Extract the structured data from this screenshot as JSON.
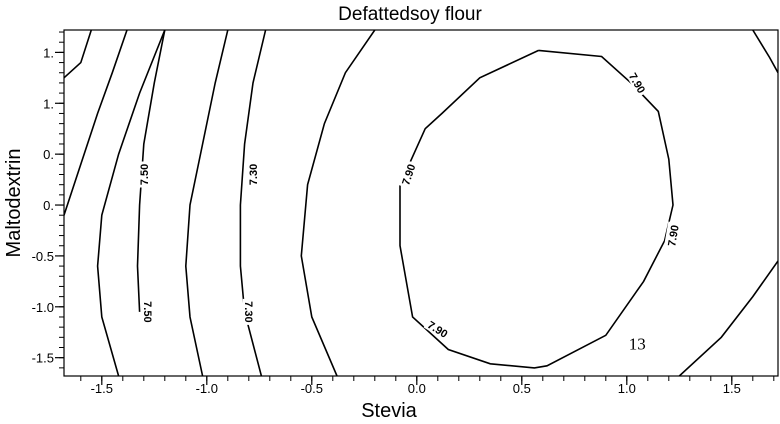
{
  "chart_data": {
    "type": "contour",
    "title": "Defattedsoy flour",
    "xlabel": "Stevia",
    "ylabel": "Maltodextrin",
    "xlim": [
      -1.68,
      1.72
    ],
    "ylim": [
      -1.68,
      1.72
    ],
    "x_ticks": [
      {
        "value": -1.5,
        "label": "-1.5"
      },
      {
        "value": -1.0,
        "label": "-1.0"
      },
      {
        "value": -0.5,
        "label": "-0.5"
      },
      {
        "value": 0.0,
        "label": "0.0"
      },
      {
        "value": 0.5,
        "label": "0.5"
      },
      {
        "value": 1.0,
        "label": "1.0"
      },
      {
        "value": 1.5,
        "label": "1.5"
      }
    ],
    "y_ticks": [
      {
        "value": 1.5,
        "label": "1."
      },
      {
        "value": 1.0,
        "label": "1."
      },
      {
        "value": 0.5,
        "label": "0."
      },
      {
        "value": 0.0,
        "label": "0."
      },
      {
        "value": -0.5,
        "label": "-0.5"
      },
      {
        "value": -1.0,
        "label": "-1.0"
      },
      {
        "value": -1.5,
        "label": "-1.5"
      }
    ],
    "contours": [
      {
        "level": "",
        "points": [
          [
            -1.68,
            1.25
          ],
          [
            -1.6,
            1.4
          ],
          [
            -1.55,
            1.72
          ]
        ]
      },
      {
        "level": "",
        "points": [
          [
            -1.68,
            -0.1
          ],
          [
            -1.6,
            0.4
          ],
          [
            -1.52,
            0.9
          ],
          [
            -1.45,
            1.3
          ],
          [
            -1.38,
            1.72
          ]
        ]
      },
      {
        "level": "",
        "points": [
          [
            -1.42,
            -1.68
          ],
          [
            -1.5,
            -1.1
          ],
          [
            -1.52,
            -0.6
          ],
          [
            -1.5,
            -0.1
          ],
          [
            -1.42,
            0.5
          ],
          [
            -1.32,
            1.1
          ],
          [
            -1.2,
            1.72
          ]
        ]
      },
      {
        "level": "7.50",
        "points": [
          [
            -1.2,
            1.72
          ],
          [
            -1.25,
            1.2
          ],
          [
            -1.3,
            0.6
          ],
          [
            -1.32,
            0.0
          ],
          [
            -1.33,
            -0.6
          ],
          [
            -1.32,
            -1.05
          ]
        ]
      },
      {
        "level": "",
        "points": [
          [
            -1.02,
            -1.68
          ],
          [
            -1.08,
            -1.1
          ],
          [
            -1.1,
            -0.6
          ],
          [
            -1.08,
            0.0
          ],
          [
            -1.02,
            0.6
          ],
          [
            -0.96,
            1.2
          ],
          [
            -0.9,
            1.72
          ]
        ]
      },
      {
        "level": "7.30",
        "points": [
          [
            -0.72,
            1.72
          ],
          [
            -0.78,
            1.2
          ],
          [
            -0.82,
            0.6
          ],
          [
            -0.84,
            0.0
          ],
          [
            -0.84,
            -0.6
          ],
          [
            -0.82,
            -1.05
          ],
          [
            -0.74,
            -1.68
          ]
        ]
      },
      {
        "level": "",
        "points": [
          [
            -0.38,
            -1.68
          ],
          [
            -0.5,
            -1.1
          ],
          [
            -0.55,
            -0.5
          ],
          [
            -0.52,
            0.2
          ],
          [
            -0.44,
            0.8
          ],
          [
            -0.34,
            1.3
          ],
          [
            -0.2,
            1.72
          ]
        ]
      },
      {
        "level": "7.90",
        "points": [
          [
            0.58,
            1.52
          ],
          [
            0.88,
            1.46
          ],
          [
            1.02,
            1.2
          ],
          [
            1.15,
            0.92
          ],
          [
            1.2,
            0.45
          ],
          [
            1.22,
            0.0
          ],
          [
            1.18,
            -0.35
          ],
          [
            1.08,
            -0.75
          ],
          [
            0.9,
            -1.28
          ],
          [
            0.62,
            -1.58
          ],
          [
            0.56,
            -1.6
          ],
          [
            0.35,
            -1.56
          ],
          [
            0.15,
            -1.42
          ],
          [
            -0.02,
            -1.1
          ],
          [
            -0.08,
            -0.4
          ],
          [
            -0.08,
            0.2
          ],
          [
            0.04,
            0.75
          ],
          [
            0.12,
            0.9
          ],
          [
            0.3,
            1.25
          ],
          [
            0.58,
            1.52
          ]
        ]
      },
      {
        "level": "",
        "points": [
          [
            1.25,
            -1.68
          ],
          [
            1.45,
            -1.3
          ],
          [
            1.6,
            -0.9
          ],
          [
            1.72,
            -0.55
          ]
        ]
      },
      {
        "level": "",
        "points": [
          [
            1.6,
            1.72
          ],
          [
            1.68,
            1.45
          ],
          [
            1.72,
            1.3
          ]
        ]
      }
    ],
    "contour_labels": [
      {
        "text": "7.50",
        "x": -1.3,
        "y": 0.3,
        "angle": -90
      },
      {
        "text": "7.50",
        "x": -1.28,
        "y": -1.05,
        "angle": 90
      },
      {
        "text": "7.30",
        "x": -0.78,
        "y": 0.3,
        "angle": -90
      },
      {
        "text": "7.30",
        "x": -0.8,
        "y": -1.05,
        "angle": 90
      },
      {
        "text": "7.90",
        "x": 1.05,
        "y": 1.2,
        "angle": 60
      },
      {
        "text": "7.90",
        "x": -0.04,
        "y": 0.3,
        "angle": -72
      },
      {
        "text": "7.90",
        "x": 1.22,
        "y": -0.3,
        "angle": -80
      },
      {
        "text": "7.90",
        "x": 0.1,
        "y": -1.22,
        "angle": 32
      }
    ],
    "annotations": [
      {
        "text": "13",
        "x": 1.05,
        "y": -1.42
      }
    ],
    "grid": false,
    "legend": "none"
  }
}
